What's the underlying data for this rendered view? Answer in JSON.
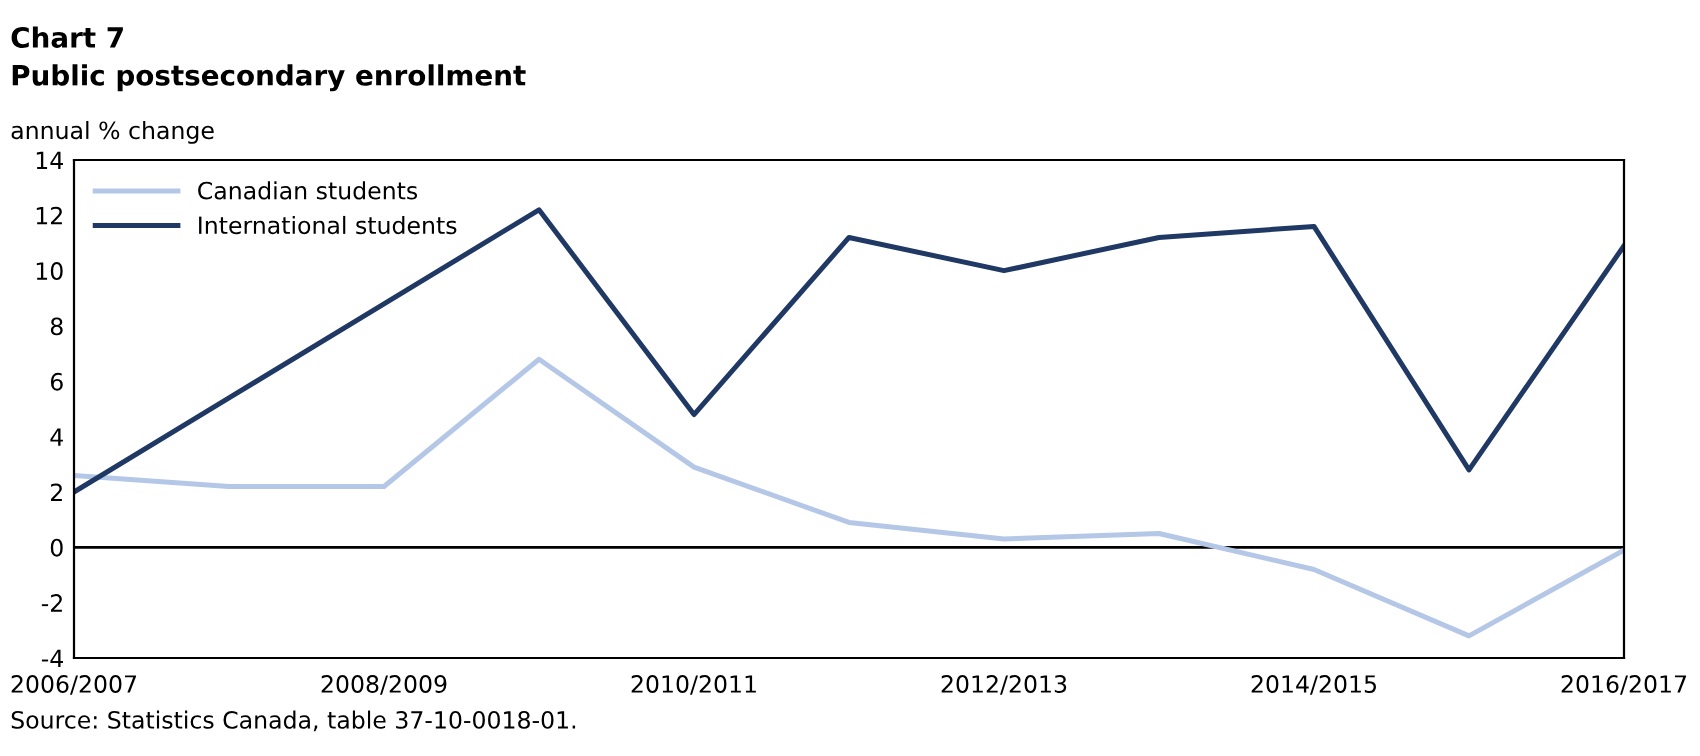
{
  "chart_data": {
    "type": "line",
    "title": "Chart 7",
    "subtitle": "Public postsecondary enrollment",
    "ylabel": "annual % change",
    "categories": [
      "2006/2007",
      null,
      "2008/2009",
      null,
      "2010/2011",
      null,
      "2012/2013",
      null,
      "2014/2015",
      null,
      "2016/2017"
    ],
    "series": [
      {
        "name": "Canadian students",
        "color": "#b4c7e7",
        "values": [
          2.6,
          2.2,
          2.2,
          6.8,
          2.9,
          0.9,
          0.3,
          0.5,
          -0.8,
          -3.2,
          -0.1
        ]
      },
      {
        "name": "International students",
        "color": "#1f3864",
        "values": [
          2.0,
          5.4,
          8.8,
          12.2,
          4.8,
          11.2,
          10.0,
          11.2,
          11.6,
          2.8,
          10.9
        ]
      }
    ],
    "ylim": [
      -4,
      14
    ],
    "yticks": [
      -4,
      -2,
      0,
      2,
      4,
      6,
      8,
      10,
      12,
      14
    ],
    "ref_lines": [
      {
        "axis": "y",
        "value": 0,
        "label": null,
        "color": "#000000"
      }
    ],
    "grid": false,
    "legend": "top left",
    "marker": "none",
    "line_style": "solid",
    "annotations": [
      "Source: Statistics Canada, table 37-10-0018-01."
    ]
  }
}
